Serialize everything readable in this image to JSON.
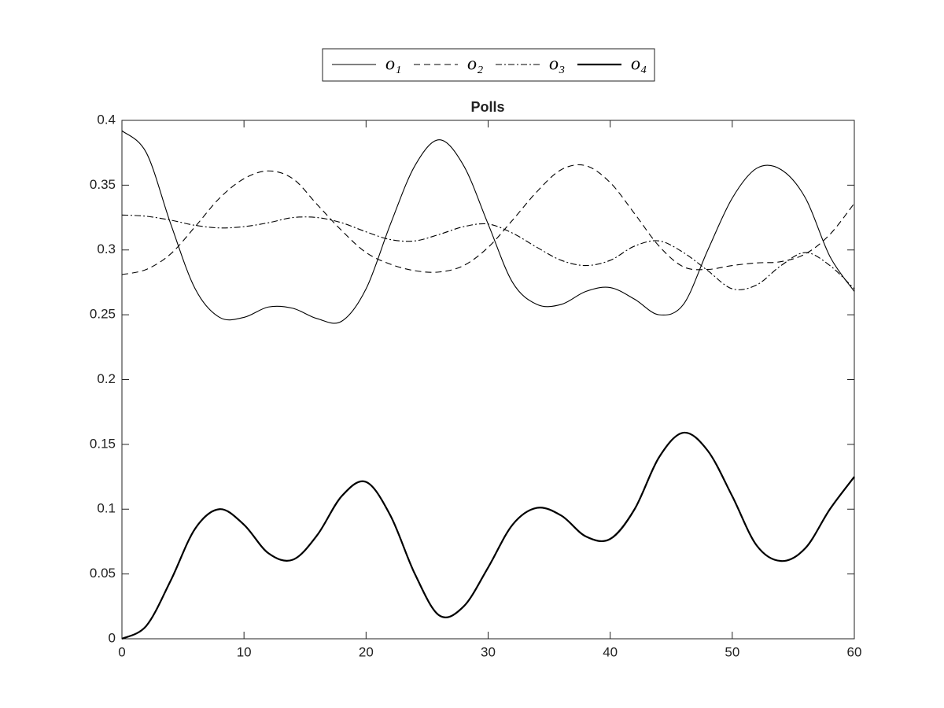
{
  "chart_data": {
    "type": "line",
    "title": "Polls",
    "x": [
      0,
      2,
      4,
      6,
      8,
      10,
      12,
      14,
      16,
      18,
      20,
      22,
      24,
      26,
      28,
      30,
      32,
      34,
      36,
      38,
      40,
      42,
      44,
      46,
      48,
      50,
      52,
      54,
      56,
      58,
      60
    ],
    "series": [
      {
        "name": "o₁",
        "color": "#000000",
        "dash": "none",
        "values": [
          0.392,
          0.375,
          0.32,
          0.27,
          0.248,
          0.248,
          0.256,
          0.255,
          0.247,
          0.245,
          0.27,
          0.32,
          0.365,
          0.385,
          0.365,
          0.32,
          0.275,
          0.258,
          0.258,
          0.268,
          0.271,
          0.262,
          0.25,
          0.258,
          0.3,
          0.34,
          0.363,
          0.362,
          0.34,
          0.295,
          0.268
        ]
      },
      {
        "name": "o₂",
        "color": "#000000",
        "dash": "8 5",
        "values": [
          0.281,
          0.285,
          0.297,
          0.318,
          0.34,
          0.355,
          0.361,
          0.355,
          0.335,
          0.315,
          0.298,
          0.289,
          0.284,
          0.283,
          0.288,
          0.302,
          0.323,
          0.345,
          0.362,
          0.365,
          0.352,
          0.328,
          0.303,
          0.287,
          0.285,
          0.288,
          0.29,
          0.291,
          0.297,
          0.312,
          0.336
        ]
      },
      {
        "name": "o₃",
        "color": "#000000",
        "dash": "8 3 2 3",
        "values": [
          0.327,
          0.326,
          0.323,
          0.319,
          0.317,
          0.318,
          0.321,
          0.325,
          0.325,
          0.321,
          0.314,
          0.308,
          0.307,
          0.312,
          0.318,
          0.32,
          0.313,
          0.302,
          0.292,
          0.288,
          0.292,
          0.303,
          0.307,
          0.298,
          0.284,
          0.27,
          0.273,
          0.288,
          0.298,
          0.288,
          0.27
        ]
      },
      {
        "name": "o₄",
        "color": "#000000",
        "dash": "none",
        "width": 2.2,
        "values": [
          0,
          0.01,
          0.045,
          0.085,
          0.1,
          0.088,
          0.066,
          0.061,
          0.08,
          0.11,
          0.121,
          0.095,
          0.05,
          0.018,
          0.025,
          0.055,
          0.088,
          0.101,
          0.095,
          0.079,
          0.077,
          0.1,
          0.14,
          0.159,
          0.145,
          0.11,
          0.072,
          0.06,
          0.07,
          0.1,
          0.125
        ]
      }
    ],
    "xlim": [
      0,
      60
    ],
    "xticks": [
      0,
      10,
      20,
      30,
      40,
      50,
      60
    ],
    "ylim": [
      0,
      0.4
    ],
    "yticks": [
      0,
      0.05,
      0.1,
      0.15,
      0.2,
      0.25,
      0.3,
      0.35,
      0.4
    ],
    "grid": false,
    "legend": "top"
  }
}
